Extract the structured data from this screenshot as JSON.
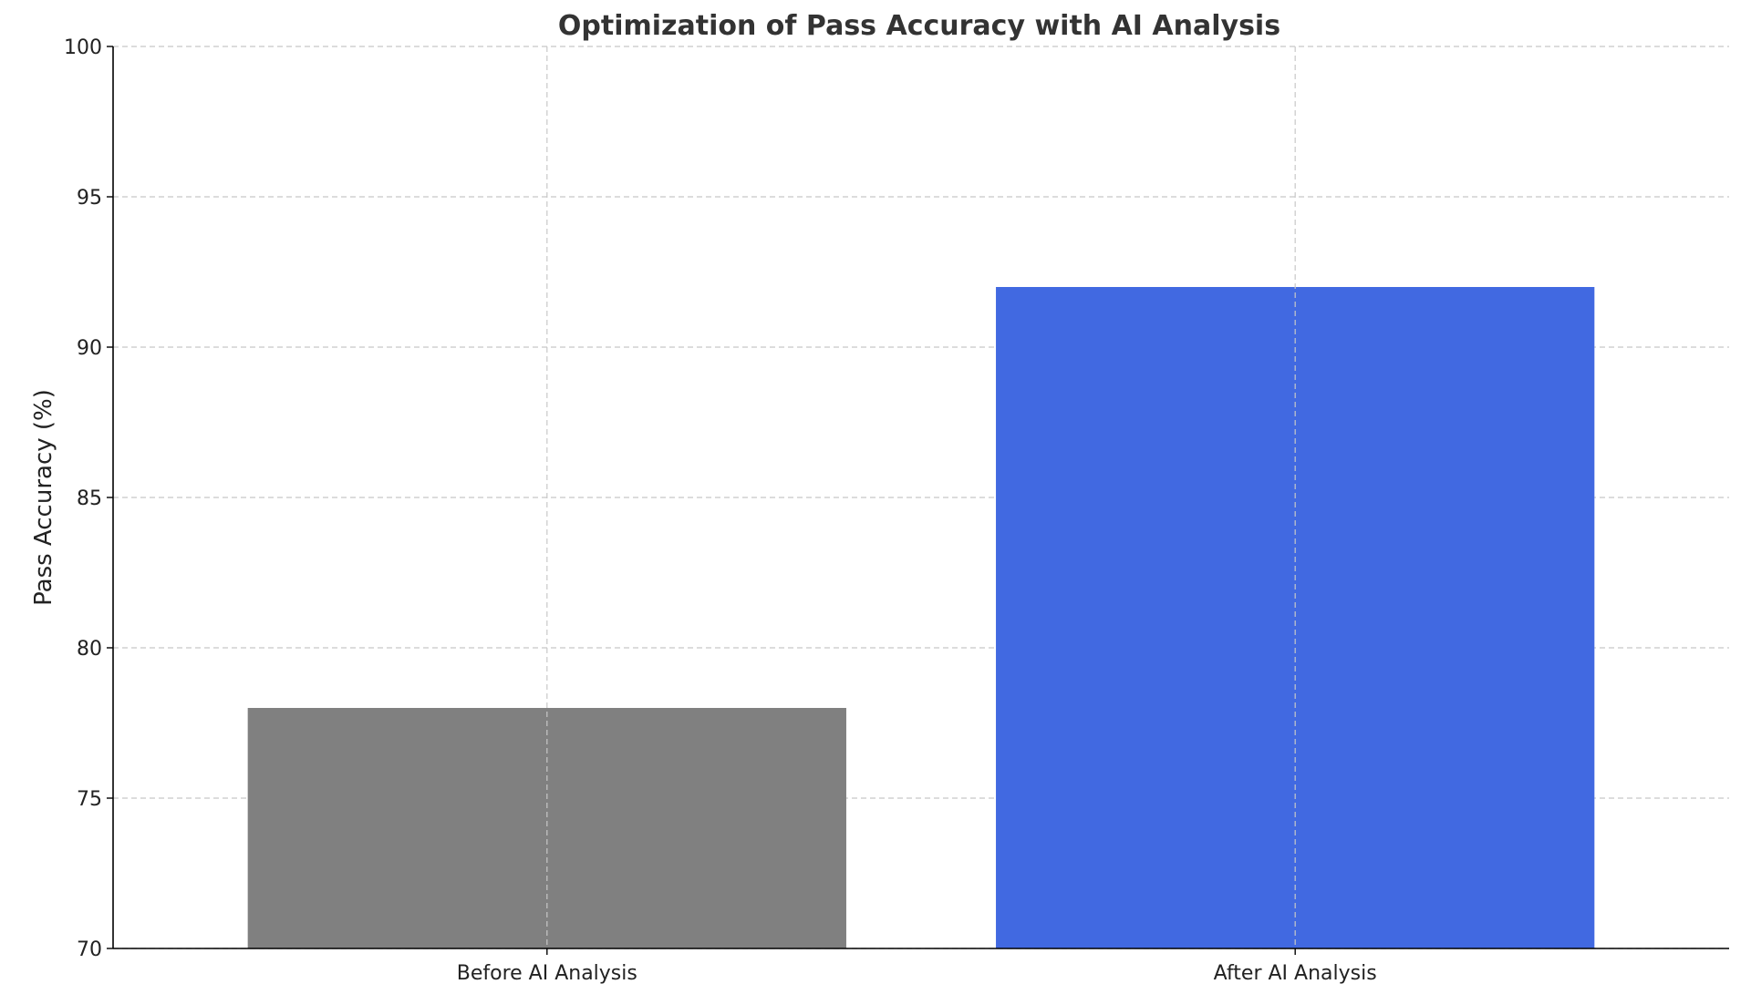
{
  "chart_data": {
    "type": "bar",
    "title": "Optimization of Pass Accuracy with AI Analysis",
    "xlabel": "",
    "ylabel": "Pass Accuracy (%)",
    "categories": [
      "Before AI Analysis",
      "After AI Analysis"
    ],
    "values": [
      78,
      92
    ],
    "colors": [
      "#808080",
      "#4169e1"
    ],
    "ylim": [
      70,
      100
    ],
    "yticks": [
      70,
      75,
      80,
      85,
      90,
      95,
      100
    ],
    "grid": true
  }
}
